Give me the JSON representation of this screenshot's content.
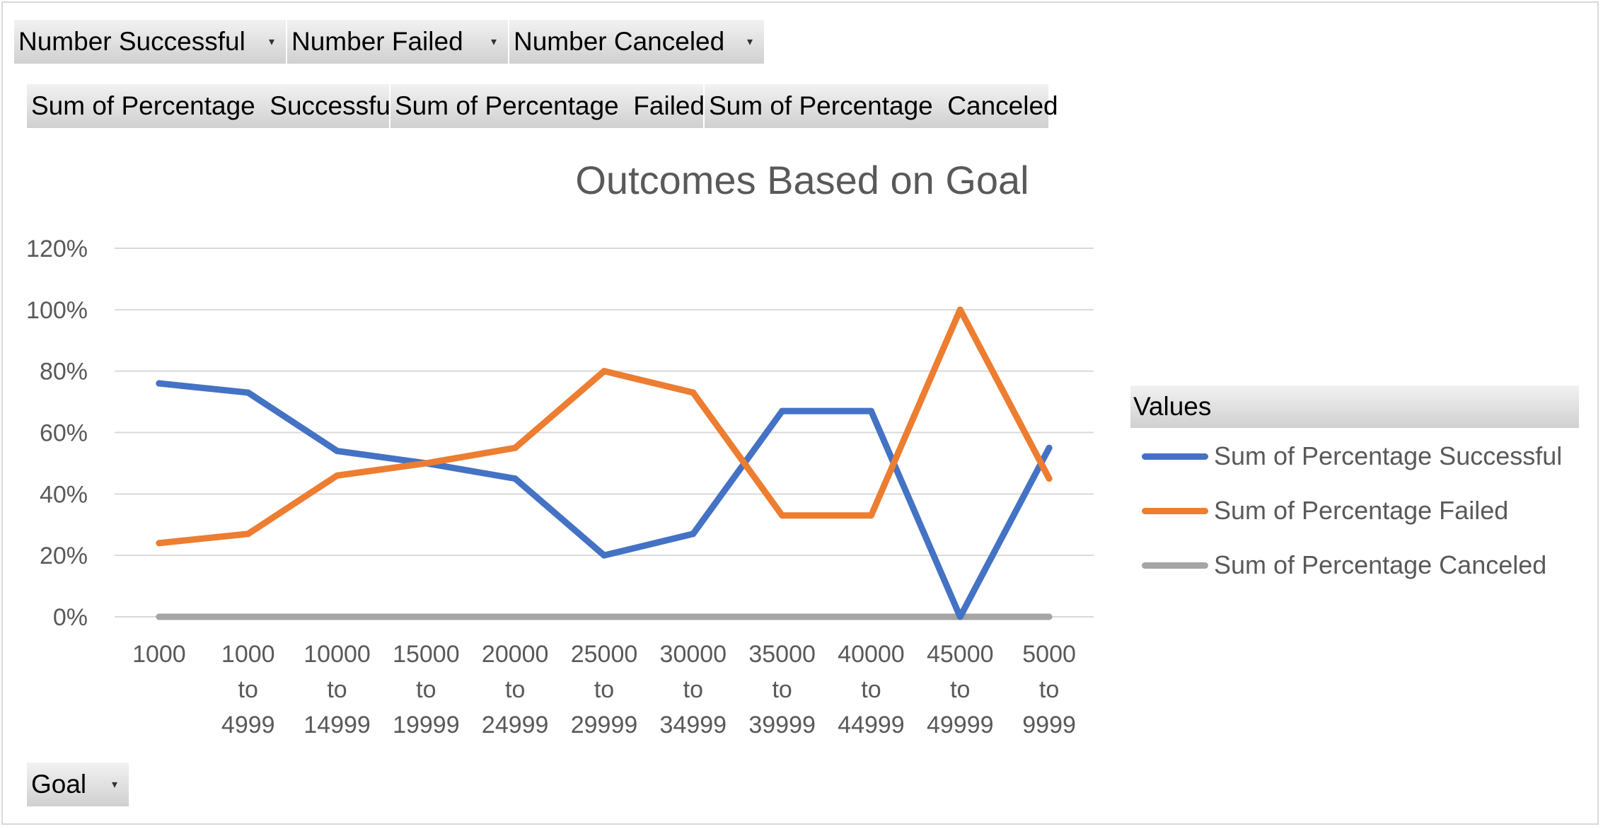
{
  "filter_fields": [
    {
      "label": "Number Successful"
    },
    {
      "label": "Number Failed"
    },
    {
      "label": "Number Canceled"
    }
  ],
  "value_fields": [
    {
      "label": "Sum of Percentage  Successful"
    },
    {
      "label": "Sum of Percentage  Failed"
    },
    {
      "label": "Sum of Percentage  Canceled"
    }
  ],
  "axis_field": {
    "label": "Goal"
  },
  "legend": {
    "header": "Values",
    "items": [
      {
        "label": "Sum of Percentage Successful",
        "color": "#4472C4"
      },
      {
        "label": "Sum of Percentage Failed",
        "color": "#ED7D31"
      },
      {
        "label": "Sum of Percentage Canceled",
        "color": "#A5A5A5"
      }
    ]
  },
  "chart_data": {
    "type": "line",
    "title": "Outcomes Based on Goal",
    "categories": [
      "1000",
      "1000 to 4999",
      "10000 to 14999",
      "15000 to 19999",
      "20000 to 24999",
      "25000 to 29999",
      "30000 to 34999",
      "35000 to 39999",
      "40000 to 44999",
      "45000 to 49999",
      "5000 to 9999"
    ],
    "category_lines": [
      [
        "1000"
      ],
      [
        "1000",
        "to",
        "4999"
      ],
      [
        "10000",
        "to",
        "14999"
      ],
      [
        "15000",
        "to",
        "19999"
      ],
      [
        "20000",
        "to",
        "24999"
      ],
      [
        "25000",
        "to",
        "29999"
      ],
      [
        "30000",
        "to",
        "34999"
      ],
      [
        "35000",
        "to",
        "39999"
      ],
      [
        "40000",
        "to",
        "44999"
      ],
      [
        "45000",
        "to",
        "49999"
      ],
      [
        "5000",
        "to",
        "9999"
      ]
    ],
    "series": [
      {
        "name": "Sum of Percentage Successful",
        "color": "#4472C4",
        "values": [
          0.76,
          0.73,
          0.54,
          0.5,
          0.45,
          0.2,
          0.27,
          0.67,
          0.67,
          0.0,
          0.55
        ]
      },
      {
        "name": "Sum of Percentage Failed",
        "color": "#ED7D31",
        "values": [
          0.24,
          0.27,
          0.46,
          0.5,
          0.55,
          0.8,
          0.73,
          0.33,
          0.33,
          1.0,
          0.45
        ]
      },
      {
        "name": "Sum of Percentage Canceled",
        "color": "#A5A5A5",
        "values": [
          0,
          0,
          0,
          0,
          0,
          0,
          0,
          0,
          0,
          0,
          0
        ]
      }
    ],
    "ylim": [
      0,
      1.2
    ],
    "yticks": [
      0,
      0.2,
      0.4,
      0.6,
      0.8,
      1.0,
      1.2
    ],
    "ytick_labels": [
      "0%",
      "20%",
      "40%",
      "60%",
      "80%",
      "100%",
      "120%"
    ],
    "grid": true,
    "legend_position": "right"
  }
}
